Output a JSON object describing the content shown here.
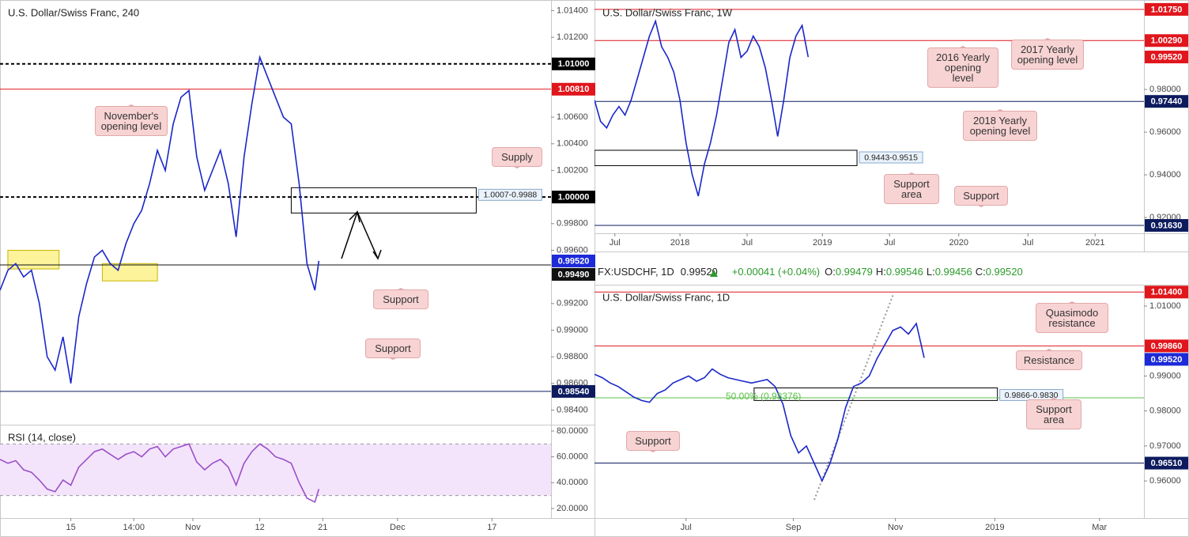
{
  "chart_data": [
    {
      "type": "line",
      "title": "U.S. Dollar/Swiss Franc, 240",
      "xlim": [
        0,
        140
      ],
      "ylim": [
        0.9829,
        1.0148
      ],
      "yticks": [
        {
          "value": 1.014,
          "label": "1.01400"
        },
        {
          "value": 1.012,
          "label": "1.01200"
        },
        {
          "value": 1.006,
          "label": "1.00600"
        },
        {
          "value": 1.004,
          "label": "1.00400"
        },
        {
          "value": 1.002,
          "label": "1.00200"
        },
        {
          "value": 0.998,
          "label": "0.99800"
        },
        {
          "value": 0.996,
          "label": "0.99600"
        },
        {
          "value": 0.992,
          "label": "0.99200"
        },
        {
          "value": 0.99,
          "label": "0.99000"
        },
        {
          "value": 0.988,
          "label": "0.98800"
        },
        {
          "value": 0.986,
          "label": "0.98600"
        },
        {
          "value": 0.984,
          "label": "0.98400"
        }
      ],
      "x": [
        0,
        2,
        4,
        6,
        8,
        10,
        12,
        14,
        16,
        18,
        20,
        22,
        24,
        26,
        28,
        30,
        32,
        34,
        36,
        38,
        40,
        42,
        44,
        46,
        48,
        50,
        52,
        54,
        56,
        58,
        60,
        62,
        64,
        66,
        68,
        70,
        72,
        74,
        76,
        78,
        80,
        81
      ],
      "series": [
        {
          "color": "#1a27c9",
          "values": [
            0.993,
            0.9945,
            0.995,
            0.994,
            0.9945,
            0.992,
            0.988,
            0.987,
            0.9895,
            0.986,
            0.991,
            0.9935,
            0.9955,
            0.996,
            0.995,
            0.9945,
            0.9965,
            0.998,
            0.999,
            1.001,
            1.0035,
            1.002,
            1.0055,
            1.0075,
            1.008,
            1.003,
            1.0005,
            1.002,
            1.0035,
            1.001,
            0.997,
            1.003,
            1.007,
            1.0105,
            1.009,
            1.0075,
            1.006,
            1.0055,
            1.001,
            0.995,
            0.993,
            0.9952
          ]
        }
      ],
      "levels": [
        {
          "value": 1.01,
          "label": "1.01000",
          "color": "#000000",
          "style": "dashed"
        },
        {
          "value": 1.0081,
          "label": "1.00810",
          "color": "#e0161c",
          "style": "solid"
        },
        {
          "value": 1.0,
          "label": "1.00000",
          "color": "#000000",
          "style": "dashed"
        },
        {
          "value": 0.9952,
          "label": "0.99520",
          "color": "#1c2ad8",
          "style": "tag"
        },
        {
          "value": 0.9949,
          "label": "0.99490",
          "color": "#111111",
          "style": "solid"
        },
        {
          "value": 0.9854,
          "label": "0.98540",
          "color": "#0d1b5e",
          "style": "solid"
        }
      ],
      "zones": [
        {
          "x": [
            74,
            121
          ],
          "y": [
            1.0007,
            0.9988
          ],
          "label": "1.0007-0.9988",
          "color": "#000000",
          "fill": "none"
        },
        {
          "x": [
            2,
            15
          ],
          "y": [
            0.996,
            0.9946
          ],
          "color": "#c9b400",
          "fill": "#fdf39a"
        },
        {
          "x": [
            26,
            40
          ],
          "y": [
            0.995,
            0.9937
          ],
          "color": "#c9b400",
          "fill": "#fdf39a"
        }
      ],
      "callouts": [
        "November's opening level",
        "Supply",
        "Support",
        "Support"
      ]
    },
    {
      "type": "line",
      "title": "RSI (14, close)",
      "xlim": [
        0,
        140
      ],
      "ylim": [
        12.6,
        84.9
      ],
      "xticks": [
        {
          "value": 18,
          "label": "15"
        },
        {
          "value": 34,
          "label": "14:00"
        },
        {
          "value": 49,
          "label": "Nov"
        },
        {
          "value": 66,
          "label": "12"
        },
        {
          "value": 82,
          "label": "21"
        },
        {
          "value": 101,
          "label": "Dec"
        },
        {
          "value": 125,
          "label": "17"
        }
      ],
      "yticks": [
        {
          "value": 80,
          "label": "80.0000"
        },
        {
          "value": 60,
          "label": "60.0000"
        },
        {
          "value": 40,
          "label": "40.0000"
        },
        {
          "value": 20,
          "label": "20.0000"
        }
      ],
      "band": [
        30,
        70
      ],
      "band_color": "#f3e4fb",
      "x": [
        0,
        2,
        4,
        6,
        8,
        10,
        12,
        14,
        16,
        18,
        20,
        22,
        24,
        26,
        28,
        30,
        32,
        34,
        36,
        38,
        40,
        42,
        44,
        46,
        48,
        50,
        52,
        54,
        56,
        58,
        60,
        62,
        64,
        66,
        68,
        70,
        72,
        74,
        76,
        78,
        80,
        81
      ],
      "series": [
        {
          "color": "#9b4fc8",
          "values": [
            58,
            55,
            57,
            50,
            48,
            42,
            35,
            33,
            42,
            38,
            52,
            58,
            64,
            66,
            62,
            58,
            62,
            64,
            60,
            66,
            68,
            60,
            66,
            68,
            70,
            56,
            50,
            55,
            58,
            52,
            38,
            55,
            64,
            70,
            66,
            60,
            58,
            55,
            40,
            28,
            25,
            35
          ]
        }
      ]
    },
    {
      "type": "line",
      "title": "U.S. Dollar/Swiss Franc, 1W",
      "xlim": [
        0,
        270
      ],
      "ylim": [
        0.9126,
        1.0219
      ],
      "xticks": [
        {
          "value": 10,
          "label": "Jul"
        },
        {
          "value": 42,
          "label": "2018"
        },
        {
          "value": 75,
          "label": "Jul"
        },
        {
          "value": 112,
          "label": "2019"
        },
        {
          "value": 145,
          "label": "Jul"
        },
        {
          "value": 179,
          "label": "2020"
        },
        {
          "value": 213,
          "label": "Jul"
        },
        {
          "value": 246,
          "label": "2021"
        }
      ],
      "yticks": [
        {
          "value": 0.98,
          "label": "0.98000"
        },
        {
          "value": 0.96,
          "label": "0.96000"
        },
        {
          "value": 0.94,
          "label": "0.94000"
        },
        {
          "value": 0.92,
          "label": "0.92000"
        }
      ],
      "x": [
        0,
        3,
        6,
        9,
        12,
        15,
        18,
        21,
        24,
        27,
        30,
        33,
        36,
        39,
        42,
        45,
        48,
        51,
        54,
        57,
        60,
        63,
        66,
        69,
        72,
        75,
        78,
        81,
        84,
        87,
        90,
        93,
        96,
        99,
        102,
        105
      ],
      "series": [
        {
          "color": "#1a27c9",
          "values": [
            0.975,
            0.965,
            0.962,
            0.968,
            0.972,
            0.968,
            0.975,
            0.985,
            0.995,
            1.005,
            1.012,
            1.0,
            0.995,
            0.988,
            0.975,
            0.955,
            0.94,
            0.93,
            0.945,
            0.955,
            0.968,
            0.985,
            1.002,
            1.008,
            0.995,
            0.998,
            1.005,
            1.0,
            0.99,
            0.975,
            0.958,
            0.975,
            0.995,
            1.005,
            1.01,
            0.9952
          ]
        }
      ],
      "levels": [
        {
          "value": 1.0175,
          "label": "1.01750",
          "color": "#e0161c",
          "style": "solid"
        },
        {
          "value": 1.0029,
          "label": "1.00290",
          "color": "#e0161c",
          "style": "solid"
        },
        {
          "value": 0.9952,
          "label": "0.99520",
          "color": "#e0161c",
          "style": "tag"
        },
        {
          "value": 0.9744,
          "label": "0.97440",
          "color": "#0d1b5e",
          "style": "solid"
        },
        {
          "value": 0.9163,
          "label": "0.91630",
          "color": "#0d1b5e",
          "style": "solid"
        }
      ],
      "zones": [
        {
          "x": [
            0,
            129
          ],
          "y": [
            0.9515,
            0.9443
          ],
          "label": "0.9443-0.9515",
          "color": "#000000",
          "fill": "none"
        }
      ],
      "callouts": [
        "2016 Yearly opening level",
        "2017 Yearly opening level",
        "2018 Yearly opening level",
        "Support area",
        "Support"
      ]
    },
    {
      "type": "line",
      "title": "U.S. Dollar/Swiss Franc, 1D",
      "xlim": [
        0,
        210
      ],
      "ylim": [
        0.9494,
        1.0161
      ],
      "xticks": [
        {
          "value": 35,
          "label": "Jul"
        },
        {
          "value": 76,
          "label": "Sep"
        },
        {
          "value": 115,
          "label": "Nov"
        },
        {
          "value": 153,
          "label": "2019"
        },
        {
          "value": 193,
          "label": "Mar"
        }
      ],
      "yticks": [
        {
          "value": 1.01,
          "label": "1.01000"
        },
        {
          "value": 0.99,
          "label": "0.99000"
        },
        {
          "value": 0.98,
          "label": "0.98000"
        },
        {
          "value": 0.97,
          "label": "0.97000"
        },
        {
          "value": 0.96,
          "label": "0.96000"
        }
      ],
      "x": [
        0,
        3,
        6,
        9,
        12,
        15,
        18,
        21,
        24,
        27,
        30,
        33,
        36,
        39,
        42,
        45,
        48,
        51,
        54,
        57,
        60,
        63,
        66,
        69,
        72,
        75,
        78,
        81,
        84,
        87,
        90,
        93,
        96,
        99,
        102,
        105,
        108,
        111,
        114,
        117,
        120,
        123,
        126
      ],
      "series": [
        {
          "color": "#1a27c9",
          "values": [
            0.9905,
            0.9895,
            0.988,
            0.987,
            0.9855,
            0.984,
            0.983,
            0.9825,
            0.985,
            0.986,
            0.988,
            0.989,
            0.99,
            0.9885,
            0.9895,
            0.992,
            0.9905,
            0.9895,
            0.989,
            0.9885,
            0.988,
            0.9885,
            0.989,
            0.987,
            0.982,
            0.973,
            0.968,
            0.97,
            0.965,
            0.96,
            0.965,
            0.972,
            0.981,
            0.987,
            0.988,
            0.99,
            0.995,
            0.999,
            1.003,
            1.004,
            1.002,
            1.005,
            0.9952
          ]
        }
      ],
      "levels": [
        {
          "value": 1.014,
          "label": "1.01400",
          "color": "#e0161c",
          "style": "solid"
        },
        {
          "value": 0.9986,
          "label": "0.99860",
          "color": "#e0161c",
          "style": "solid"
        },
        {
          "value": 0.9952,
          "label": "0.99520",
          "color": "#1c2ad8",
          "style": "tag"
        },
        {
          "value": 0.9651,
          "label": "0.96510",
          "color": "#0d1b5e",
          "style": "solid"
        }
      ],
      "fib": {
        "value": 0.98376,
        "label": "50.00% (0.98376)",
        "color": "#5cc04a"
      },
      "zones": [
        {
          "x": [
            61,
            154
          ],
          "y": [
            0.9866,
            0.983
          ],
          "label": "0.9866-0.9830",
          "color": "#000000",
          "fill": "none"
        }
      ],
      "callouts": [
        "Quasimodo resistance",
        "Resistance",
        "Support area",
        "Support"
      ]
    }
  ],
  "info": {
    "symbol": "FX:USDCHF, 1D",
    "last": "0.99520",
    "change": "+0.00041 (+0.04%)",
    "ohlc": [
      {
        "label": "O:",
        "value": "0.99479"
      },
      {
        "label": "H:",
        "value": "0.99546"
      },
      {
        "label": "L:",
        "value": "0.99456"
      },
      {
        "label": "C:",
        "value": "0.99520"
      }
    ]
  }
}
